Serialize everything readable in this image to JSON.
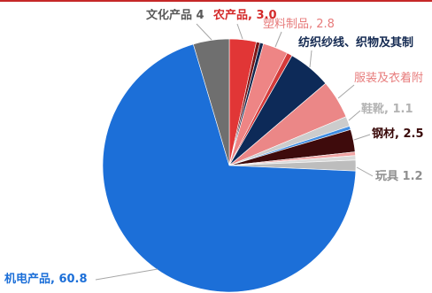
{
  "chart_data": {
    "type": "pie",
    "slices": [
      {
        "label": "农产品, 3.0",
        "value": 3.0,
        "color": "#e13636",
        "label_color": "#d42a2a"
      },
      {
        "value": 0.4,
        "color": "#7a1616"
      },
      {
        "value": 0.4,
        "color": "#12284f"
      },
      {
        "label": "塑料制品, 2.8",
        "value": 2.8,
        "color": "#ee8585",
        "label_color": "#e77b7b"
      },
      {
        "value": 0.6,
        "color": "#d43a3a"
      },
      {
        "label": "纺织纱线、织物及其制",
        "value": 4.8,
        "color": "#0d2a58",
        "label_color": "#142a52"
      },
      {
        "label": "服装及衣着附",
        "value": 4.3,
        "color": "#eb8787",
        "label_color": "#e77b7b"
      },
      {
        "label": "鞋靴, 1.1",
        "value": 1.1,
        "color": "#cccccc",
        "label_color": "#b3b3b3"
      },
      {
        "value": 0.4,
        "color": "#3f8de3"
      },
      {
        "label": "钢材, 2.5",
        "value": 2.5,
        "color": "#3e0b0c",
        "label_color": "#3a0a0a"
      },
      {
        "value": 0.4,
        "color": "#f0a3a3"
      },
      {
        "value": 0.5,
        "color": "#dadada"
      },
      {
        "label": "玩具 1.2",
        "value": 1.2,
        "color": "#bdbdbd",
        "label_color": "#8f8f8f"
      },
      {
        "label": "机电产品, 60.8",
        "value": 60.8,
        "color": "#1c6fd8",
        "label_color": "#1c6fd8"
      },
      {
        "label": "文化产品 4",
        "value": 4.0,
        "color": "#6f6f6f",
        "label_color": "#595959"
      }
    ]
  },
  "colors": {
    "top_rule": "#c62828",
    "leader_line": "#a6a6a6"
  }
}
